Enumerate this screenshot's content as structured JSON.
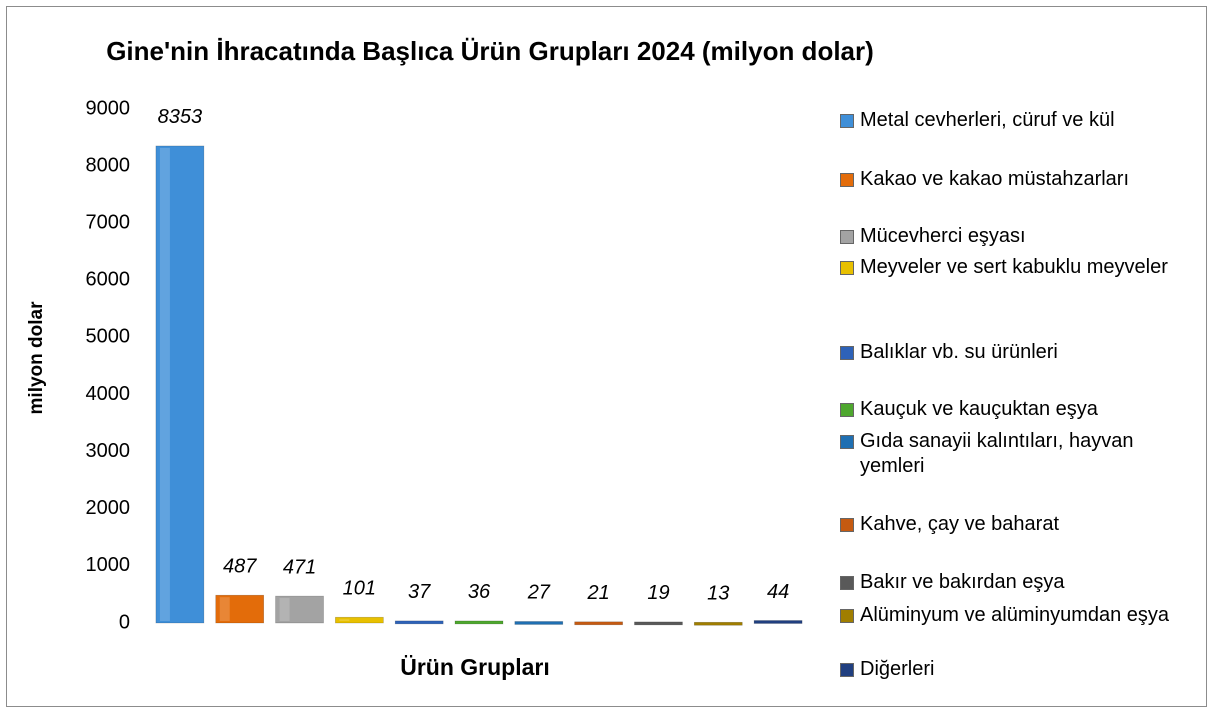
{
  "chart_data": {
    "type": "bar",
    "title": "Gine'nin İhracatında Başlıca Ürün Grupları 2024 (milyon dolar)",
    "y_label": "milyon dolar",
    "x_label": "Ürün Grupları",
    "ylim": [
      0,
      9000
    ],
    "yticks": [
      0,
      1000,
      2000,
      3000,
      4000,
      5000,
      6000,
      7000,
      8000,
      9000
    ],
    "grid": false,
    "legend": "right",
    "series": [
      {
        "name": "Metal cevherleri, cüruf ve kül",
        "color": "#3f8fd8",
        "values": [
          8353
        ]
      },
      {
        "name": "Kakao ve kakao müstahzarları",
        "color": "#e36c0a",
        "values": [
          487
        ]
      },
      {
        "name": "Mücevherci eşyası",
        "color": "#a3a3a3",
        "values": [
          471
        ]
      },
      {
        "name": "Meyveler ve sert kabuklu meyveler",
        "color": "#e8c000",
        "values": [
          101
        ]
      },
      {
        "name": "Balıklar vb. su ürünleri",
        "color": "#2e62b8",
        "values": [
          37
        ]
      },
      {
        "name": "Kauçuk ve kauçuktan eşya",
        "color": "#4ea72e",
        "values": [
          36
        ]
      },
      {
        "name": "Gıda sanayii kalıntıları, hayvan yemleri",
        "color": "#1f6fb2",
        "values": [
          27
        ]
      },
      {
        "name": "Kahve, çay ve baharat",
        "color": "#c55a11",
        "values": [
          21
        ]
      },
      {
        "name": "Bakır ve bakırdan eşya",
        "color": "#595959",
        "values": [
          19
        ]
      },
      {
        "name": "Alüminyum ve alüminyumdan eşya",
        "color": "#a07e00",
        "values": [
          13
        ]
      },
      {
        "name": "Diğerleri",
        "color": "#203f80",
        "values": [
          44
        ]
      }
    ]
  }
}
